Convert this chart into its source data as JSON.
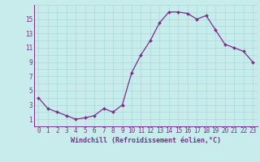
{
  "x": [
    0,
    1,
    2,
    3,
    4,
    5,
    6,
    7,
    8,
    9,
    10,
    11,
    12,
    13,
    14,
    15,
    16,
    17,
    18,
    19,
    20,
    21,
    22,
    23
  ],
  "y": [
    4.0,
    2.5,
    2.0,
    1.5,
    1.0,
    1.2,
    1.5,
    2.5,
    2.0,
    3.0,
    7.5,
    10.0,
    12.0,
    14.5,
    16.0,
    16.0,
    15.8,
    15.0,
    15.5,
    13.5,
    11.5,
    11.0,
    10.5,
    9.0
  ],
  "line_color": "#7b2d8b",
  "marker": "D",
  "marker_size": 2.0,
  "bg_color": "#c8ecec",
  "grid_color": "#a8d8d8",
  "xlabel": "Windchill (Refroidissement éolien,°C)",
  "xlabel_fontsize": 6.0,
  "tick_fontsize": 5.5,
  "ylim": [
    0,
    17
  ],
  "yticks": [
    1,
    3,
    5,
    7,
    9,
    11,
    13,
    15
  ],
  "xlim": [
    -0.5,
    23.5
  ],
  "xticks": [
    0,
    1,
    2,
    3,
    4,
    5,
    6,
    7,
    8,
    9,
    10,
    11,
    12,
    13,
    14,
    15,
    16,
    17,
    18,
    19,
    20,
    21,
    22,
    23
  ]
}
